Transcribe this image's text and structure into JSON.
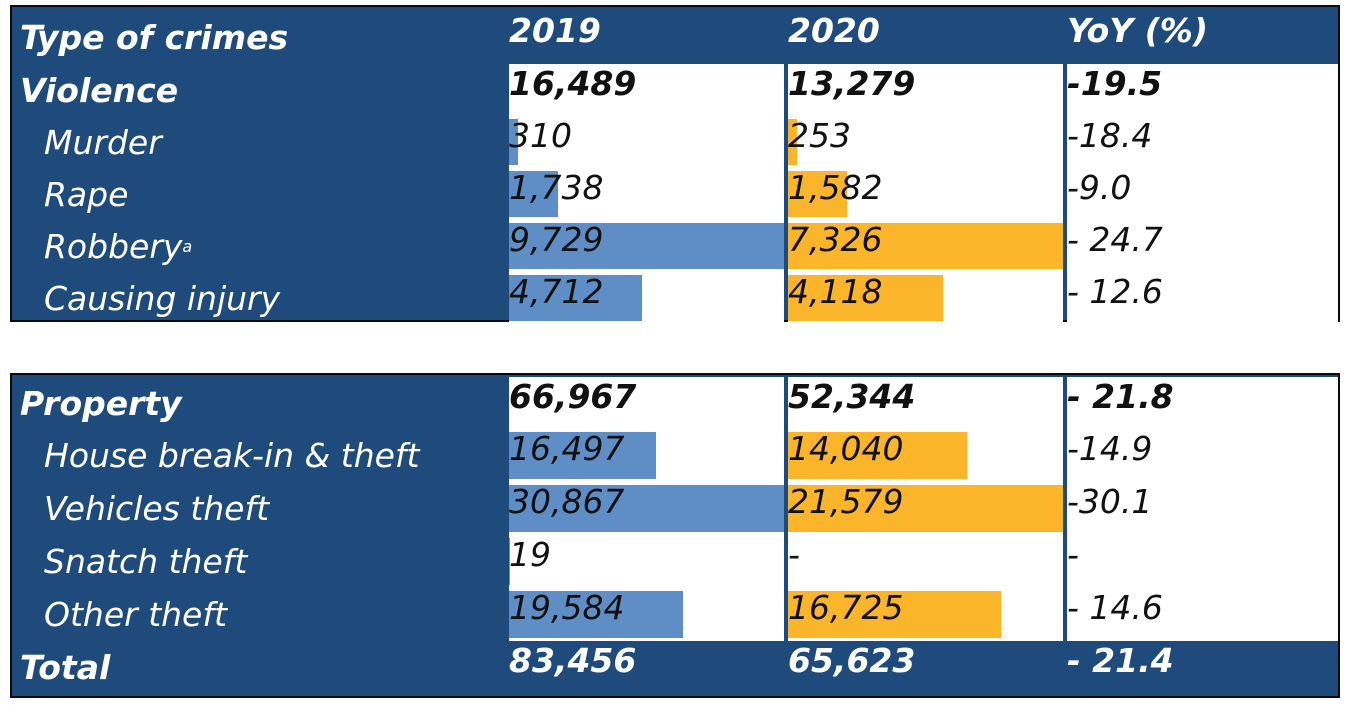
{
  "colors": {
    "header_bg": "#1f4a7c",
    "bar_2019": "#5f8ec6",
    "bar_2020": "#fbb52a"
  },
  "header": {
    "type": "Type of crimes",
    "y2019": "2019",
    "y2020": "2020",
    "yoy": "YoY (%)"
  },
  "violence": {
    "label": "Violence",
    "v2019": "16,489",
    "v2020": "13,279",
    "yoy": "-19.5",
    "rows": [
      {
        "label": "Murder",
        "sup": "",
        "v2019": "310",
        "v2020": "253",
        "yoy": "-18.4"
      },
      {
        "label": "Rape",
        "sup": "",
        "v2019": "1,738",
        "v2020": "1,582",
        "yoy": "-9.0"
      },
      {
        "label": "Robbery",
        "sup": "a",
        "v2019": "9,729",
        "v2020": "7,326",
        "yoy": "- 24.7"
      },
      {
        "label": "Causing injury",
        "sup": "",
        "v2019": "4,712",
        "v2020": "4,118",
        "yoy": "- 12.6"
      }
    ]
  },
  "property": {
    "label": "Property",
    "v2019": "66,967",
    "v2020": "52,344",
    "yoy": "- 21.8",
    "rows": [
      {
        "label": "House break-in & theft",
        "sup": "",
        "v2019": "16,497",
        "v2020": "14,040",
        "yoy": "-14.9"
      },
      {
        "label": "Vehicles theft",
        "sup": "",
        "v2019": "30,867",
        "v2020": "21,579",
        "yoy": "-30.1"
      },
      {
        "label": "Snatch theft",
        "sup": "",
        "v2019": "19",
        "v2020": "-",
        "yoy": "-"
      },
      {
        "label": "Other theft",
        "sup": "",
        "v2019": "19,584",
        "v2020": "16,725",
        "yoy": "- 14.6"
      }
    ]
  },
  "total": {
    "label": "Total",
    "v2019": "83,456",
    "v2020": "65,623",
    "yoy": "- 21.4"
  },
  "chart_data": {
    "type": "table",
    "columns": [
      "Type of crimes",
      "2019",
      "2020",
      "YoY (%)"
    ],
    "groups": [
      {
        "name": "Violence",
        "total_2019": 16489,
        "total_2020": 13279,
        "yoy": -19.5,
        "categories": [
          "Murder",
          "Rape",
          "Robbery",
          "Causing injury"
        ],
        "series": [
          {
            "name": "2019",
            "values": [
              310,
              1738,
              9729,
              4712
            ]
          },
          {
            "name": "2020",
            "values": [
              253,
              1582,
              7326,
              4118
            ]
          },
          {
            "name": "YoY (%)",
            "values": [
              -18.4,
              -9.0,
              -24.7,
              -12.6
            ]
          }
        ]
      },
      {
        "name": "Property",
        "total_2019": 66967,
        "total_2020": 52344,
        "yoy": -21.8,
        "categories": [
          "House break-in & theft",
          "Vehicles theft",
          "Snatch theft",
          "Other theft"
        ],
        "series": [
          {
            "name": "2019",
            "values": [
              16497,
              30867,
              19,
              19584
            ]
          },
          {
            "name": "2020",
            "values": [
              14040,
              21579,
              null,
              16725
            ]
          },
          {
            "name": "YoY (%)",
            "values": [
              -14.9,
              -30.1,
              null,
              -14.6
            ]
          }
        ]
      }
    ],
    "total": {
      "name": "Total",
      "v2019": 83456,
      "v2020": 65623,
      "yoy": -21.4
    }
  }
}
